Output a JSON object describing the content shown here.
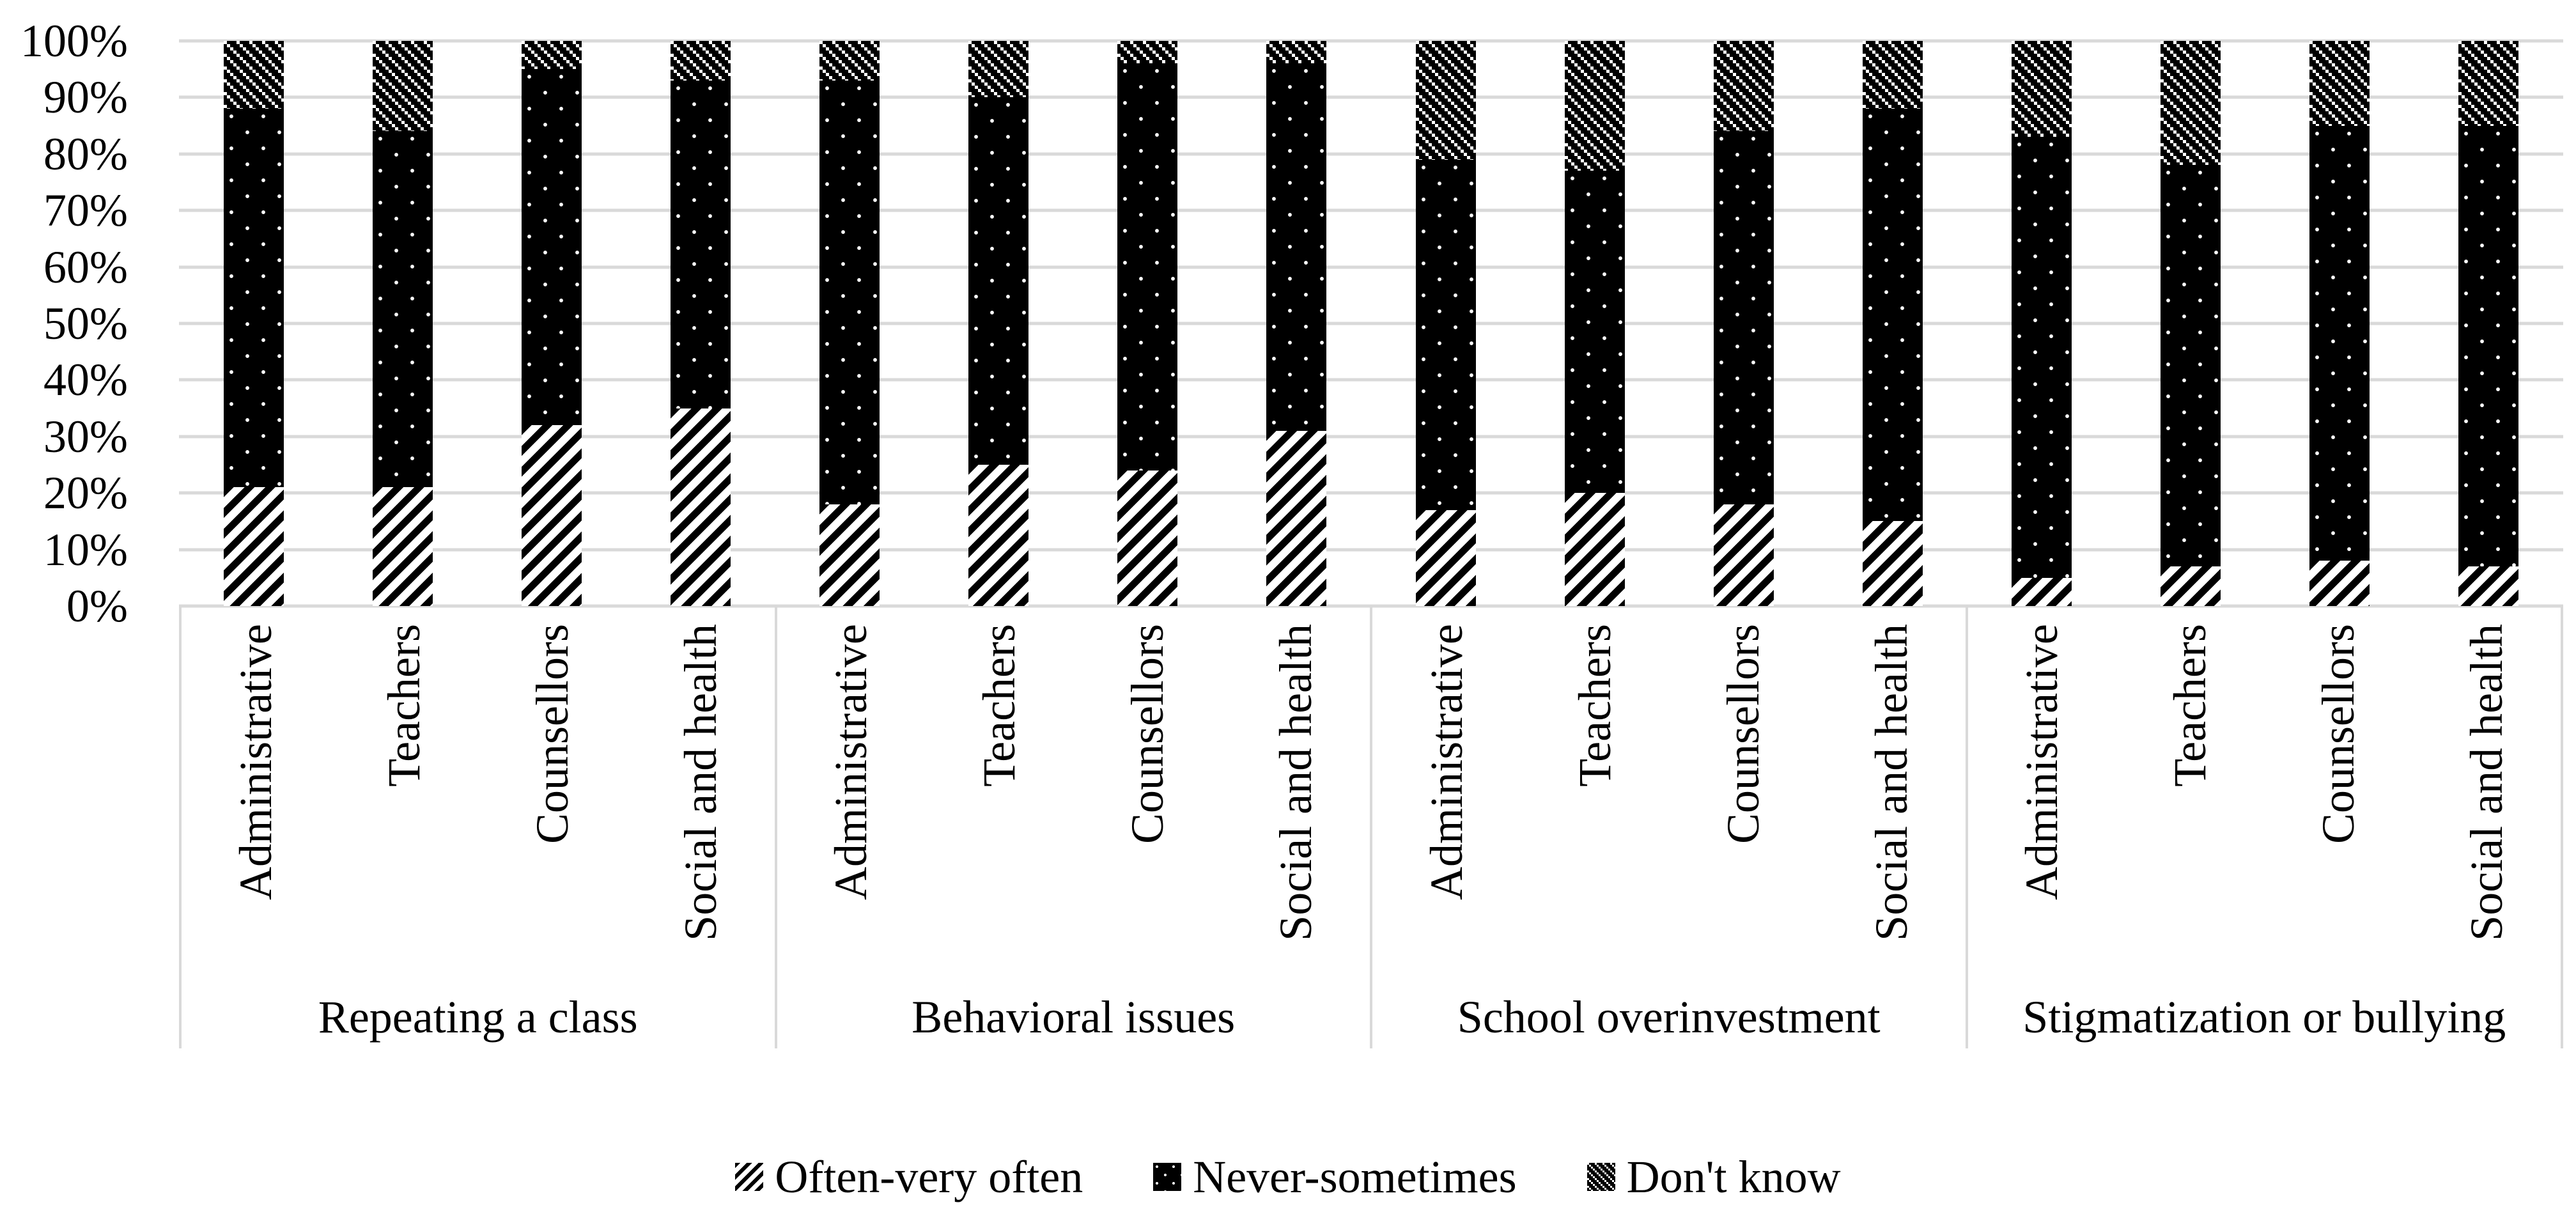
{
  "colors": {
    "background": "#ffffff",
    "series_fill": "#000000",
    "gridline": "#d9d9d9",
    "divider": "#d9d9d9",
    "text": "#000000"
  },
  "y_axis": {
    "min": 0,
    "max": 100,
    "tick_step": 10,
    "tick_labels": [
      "0%",
      "10%",
      "20%",
      "30%",
      "40%",
      "50%",
      "60%",
      "70%",
      "80%",
      "90%",
      "100%"
    ]
  },
  "legend": {
    "items": [
      {
        "label": "Often-very often",
        "pattern": "diagonal-hatch"
      },
      {
        "label": "Never-sometimes",
        "pattern": "black-with-white-dots"
      },
      {
        "label": "Don't know",
        "pattern": "checker-weave"
      }
    ]
  },
  "chart_data": {
    "type": "bar",
    "subtype": "100-percent-stacked-column",
    "title": "",
    "xlabel": "",
    "ylabel": "",
    "ylim": [
      0,
      100
    ],
    "grid": "horizontal",
    "legend_position": "bottom",
    "series": [
      "Often-very often",
      "Never-sometimes",
      "Don't know"
    ],
    "categories_per_group": [
      "Administrative",
      "Teachers",
      "Counsellors",
      "Social and health"
    ],
    "groups": [
      {
        "label": "Repeating a class",
        "values": [
          [
            21,
            67,
            12
          ],
          [
            21,
            63,
            16
          ],
          [
            32,
            63,
            5
          ],
          [
            35,
            58,
            7
          ]
        ]
      },
      {
        "label": "Behavioral issues",
        "values": [
          [
            18,
            75,
            7
          ],
          [
            25,
            65,
            10
          ],
          [
            24,
            72,
            4
          ],
          [
            31,
            65,
            4
          ]
        ]
      },
      {
        "label": "School overinvestment",
        "values": [
          [
            17,
            62,
            21
          ],
          [
            20,
            57,
            23
          ],
          [
            18,
            66,
            16
          ],
          [
            15,
            73,
            12
          ]
        ]
      },
      {
        "label": "Stigmatization or bullying",
        "values": [
          [
            5,
            78,
            17
          ],
          [
            7,
            71,
            22
          ],
          [
            8,
            77,
            15
          ],
          [
            7,
            78,
            15
          ]
        ]
      }
    ],
    "values_order": [
      "often_very_often",
      "never_sometimes",
      "dont_know"
    ]
  }
}
